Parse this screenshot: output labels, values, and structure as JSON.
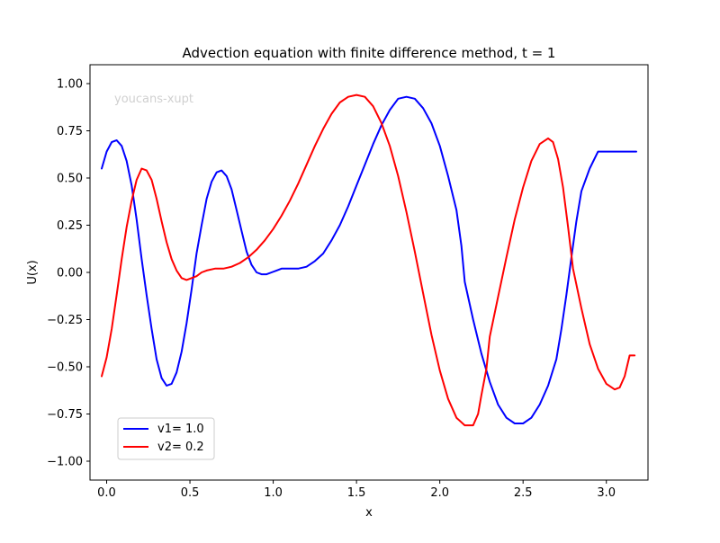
{
  "chart_data": {
    "type": "line",
    "title": "Advection equation with finite difference method, t = 1",
    "xlabel": "x",
    "ylabel": "U(x)",
    "watermark": "youcans-xupt",
    "xlim": [
      -0.1,
      3.25
    ],
    "ylim": [
      -1.1,
      1.1
    ],
    "xticks": [
      "0.0",
      "0.5",
      "1.0",
      "1.5",
      "2.0",
      "2.5",
      "3.0"
    ],
    "xtick_values": [
      0.0,
      0.5,
      1.0,
      1.5,
      2.0,
      2.5,
      3.0
    ],
    "yticks": [
      "−1.00",
      "−0.75",
      "−0.50",
      "−0.25",
      "0.00",
      "0.25",
      "0.50",
      "0.75",
      "1.00"
    ],
    "ytick_values": [
      -1.0,
      -0.75,
      -0.5,
      -0.25,
      0.0,
      0.25,
      0.5,
      0.75,
      1.0
    ],
    "grid": false,
    "legend_position": "lower-left",
    "series": [
      {
        "name": "v1= 1.0",
        "color": "#0000ff",
        "x": [
          -0.03,
          0.0,
          0.03,
          0.06,
          0.09,
          0.12,
          0.15,
          0.18,
          0.21,
          0.24,
          0.27,
          0.3,
          0.33,
          0.36,
          0.39,
          0.42,
          0.45,
          0.48,
          0.51,
          0.54,
          0.57,
          0.6,
          0.63,
          0.66,
          0.69,
          0.72,
          0.75,
          0.78,
          0.81,
          0.84,
          0.87,
          0.9,
          0.93,
          0.96,
          0.99,
          1.02,
          1.05,
          1.1,
          1.15,
          1.2,
          1.25,
          1.3,
          1.35,
          1.4,
          1.45,
          1.5,
          1.55,
          1.6,
          1.65,
          1.7,
          1.75,
          1.8,
          1.85,
          1.9,
          1.95,
          2.0,
          2.05,
          2.1,
          2.13,
          2.15,
          2.2,
          2.25,
          2.3,
          2.35,
          2.4,
          2.45,
          2.5,
          2.55,
          2.6,
          2.65,
          2.7,
          2.73,
          2.76,
          2.79,
          2.82,
          2.85,
          2.9,
          2.95,
          3.0,
          3.05,
          3.1,
          3.15,
          3.18
        ],
        "y": [
          0.55,
          0.64,
          0.69,
          0.7,
          0.67,
          0.59,
          0.46,
          0.28,
          0.07,
          -0.12,
          -0.3,
          -0.46,
          -0.56,
          -0.6,
          -0.59,
          -0.53,
          -0.42,
          -0.27,
          -0.09,
          0.1,
          0.25,
          0.39,
          0.48,
          0.53,
          0.54,
          0.51,
          0.44,
          0.33,
          0.22,
          0.11,
          0.04,
          0.0,
          -0.01,
          -0.01,
          0.0,
          0.01,
          0.02,
          0.02,
          0.02,
          0.03,
          0.06,
          0.1,
          0.17,
          0.25,
          0.35,
          0.46,
          0.57,
          0.68,
          0.78,
          0.86,
          0.92,
          0.93,
          0.92,
          0.87,
          0.79,
          0.67,
          0.51,
          0.33,
          0.14,
          -0.05,
          -0.25,
          -0.43,
          -0.58,
          -0.7,
          -0.77,
          -0.8,
          -0.8,
          -0.77,
          -0.7,
          -0.6,
          -0.46,
          -0.3,
          -0.12,
          0.08,
          0.27,
          0.43,
          0.55,
          0.64,
          0.64,
          0.64,
          0.64,
          0.64,
          0.64
        ]
      },
      {
        "name": "v2= 0.2",
        "color": "#ff0000",
        "x": [
          -0.03,
          0.0,
          0.03,
          0.06,
          0.09,
          0.12,
          0.15,
          0.18,
          0.21,
          0.24,
          0.27,
          0.3,
          0.33,
          0.36,
          0.39,
          0.42,
          0.45,
          0.48,
          0.51,
          0.54,
          0.57,
          0.6,
          0.65,
          0.7,
          0.75,
          0.8,
          0.85,
          0.9,
          0.95,
          1.0,
          1.05,
          1.1,
          1.15,
          1.2,
          1.25,
          1.3,
          1.35,
          1.4,
          1.45,
          1.5,
          1.55,
          1.6,
          1.65,
          1.7,
          1.75,
          1.8,
          1.85,
          1.9,
          1.95,
          2.0,
          2.05,
          2.1,
          2.15,
          2.2,
          2.23,
          2.25,
          2.28,
          2.3,
          2.35,
          2.4,
          2.45,
          2.5,
          2.55,
          2.6,
          2.65,
          2.68,
          2.71,
          2.74,
          2.77,
          2.8,
          2.85,
          2.9,
          2.95,
          3.0,
          3.05,
          3.08,
          3.11,
          3.14,
          3.17
        ],
        "y": [
          -0.55,
          -0.45,
          -0.3,
          -0.12,
          0.07,
          0.24,
          0.38,
          0.49,
          0.55,
          0.54,
          0.49,
          0.39,
          0.27,
          0.16,
          0.07,
          0.01,
          -0.03,
          -0.04,
          -0.03,
          -0.02,
          0.0,
          0.01,
          0.02,
          0.02,
          0.03,
          0.05,
          0.08,
          0.12,
          0.17,
          0.23,
          0.3,
          0.38,
          0.47,
          0.57,
          0.67,
          0.76,
          0.84,
          0.9,
          0.93,
          0.94,
          0.93,
          0.88,
          0.79,
          0.67,
          0.51,
          0.32,
          0.11,
          -0.11,
          -0.33,
          -0.52,
          -0.67,
          -0.77,
          -0.81,
          -0.81,
          -0.75,
          -0.65,
          -0.51,
          -0.34,
          -0.13,
          0.08,
          0.28,
          0.45,
          0.59,
          0.68,
          0.71,
          0.69,
          0.6,
          0.45,
          0.24,
          0.02,
          -0.19,
          -0.38,
          -0.51,
          -0.59,
          -0.62,
          -0.61,
          -0.55,
          -0.44,
          -0.44
        ]
      }
    ]
  }
}
